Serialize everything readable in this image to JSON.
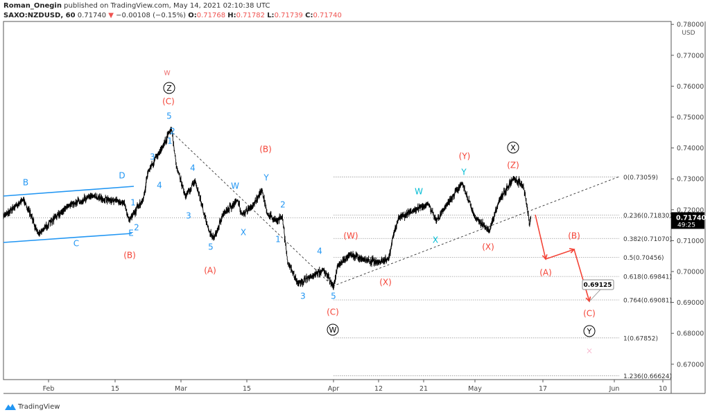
{
  "header": {
    "author": "Roman_Onegin",
    "published_text": "published on TradingView.com, May 14, 2021 02:10:38 UTC",
    "symbol": "SAXO:NZDUSD, 60",
    "last": "0.71740",
    "change": "−0.00108 (−0.15%)",
    "open_label": "O:",
    "open": "0.71768",
    "high_label": "H:",
    "high": "0.71782",
    "low_label": "L:",
    "low": "0.71739",
    "close_label": "C:",
    "close": "0.71740",
    "direction_icon": "triangle-down-icon"
  },
  "branding": {
    "logo_text": "TradingView",
    "logo_icon": "tradingview-logo-icon"
  },
  "colors": {
    "price": "#000000",
    "up_red": "#ef5350",
    "wave_blue": "#2196f3",
    "wave_cyan": "#00bcd4",
    "wave_red": "#f44336",
    "salmon": "#f08080",
    "pink": "#f8bbd0"
  },
  "chart_data": {
    "type": "line",
    "currency": "USD",
    "ylim": [
      0.665,
      0.782
    ],
    "y_ticks": [
      "0.78000",
      "0.77000",
      "0.76000",
      "0.75000",
      "0.74000",
      "0.73000",
      "0.72000",
      "0.71000",
      "0.70000",
      "0.69000",
      "0.68000",
      "0.67000"
    ],
    "x_ticks": [
      {
        "label": "Feb",
        "date": "2021-02-01"
      },
      {
        "label": "15",
        "date": "2021-02-15"
      },
      {
        "label": "Mar",
        "date": "2021-03-01"
      },
      {
        "label": "15",
        "date": "2021-03-15"
      },
      {
        "label": "Apr",
        "date": "2021-04-01"
      },
      {
        "label": "12",
        "date": "2021-04-12"
      },
      {
        "label": "21",
        "date": "2021-04-21"
      },
      {
        "label": "May",
        "date": "2021-05-03"
      },
      {
        "label": "17",
        "date": "2021-05-17"
      },
      {
        "label": "Jun",
        "date": "2021-06-01"
      },
      {
        "label": "10",
        "date": "2021-06-10"
      }
    ],
    "series": [
      {
        "points": [
          [
            "2021-01-23",
            0.718
          ],
          [
            "2021-01-27",
            0.7234
          ],
          [
            "2021-01-30",
            0.7122
          ],
          [
            "2021-02-05",
            0.7212
          ],
          [
            "2021-02-10",
            0.7245
          ],
          [
            "2021-02-17",
            0.7222
          ],
          [
            "2021-02-18",
            0.7166
          ],
          [
            "2021-02-21",
            0.7234
          ],
          [
            "2021-02-22",
            0.7323
          ],
          [
            "2021-02-25",
            0.7401
          ],
          [
            "2021-02-27",
            0.7464
          ],
          [
            "2021-02-28",
            0.7343
          ],
          [
            "2021-03-02",
            0.7242
          ],
          [
            "2021-03-04",
            0.7294
          ],
          [
            "2021-03-07",
            0.713
          ],
          [
            "2021-03-08",
            0.7108
          ],
          [
            "2021-03-10",
            0.7186
          ],
          [
            "2021-03-13",
            0.7231
          ],
          [
            "2021-03-14",
            0.7186
          ],
          [
            "2021-03-16",
            0.7208
          ],
          [
            "2021-03-18",
            0.7265
          ],
          [
            "2021-03-19",
            0.7186
          ],
          [
            "2021-03-21",
            0.7164
          ],
          [
            "2021-03-22",
            0.7175
          ],
          [
            "2021-03-23",
            0.703
          ],
          [
            "2021-03-25",
            0.6962
          ],
          [
            "2021-03-28",
            0.6985
          ],
          [
            "2021-03-30",
            0.7007
          ],
          [
            "2021-04-01",
            0.6951
          ],
          [
            "2021-04-02",
            0.7018
          ],
          [
            "2021-04-05",
            0.7056
          ],
          [
            "2021-04-08",
            0.7041
          ],
          [
            "2021-04-12",
            0.703
          ],
          [
            "2021-04-14",
            0.7041
          ],
          [
            "2021-04-15",
            0.7119
          ],
          [
            "2021-04-16",
            0.7175
          ],
          [
            "2021-04-19",
            0.7197
          ],
          [
            "2021-04-22",
            0.722
          ],
          [
            "2021-04-24",
            0.7164
          ],
          [
            "2021-04-26",
            0.7208
          ],
          [
            "2021-04-30",
            0.7287
          ],
          [
            "2021-05-03",
            0.7175
          ],
          [
            "2021-05-06",
            0.713
          ],
          [
            "2021-05-08",
            0.7231
          ],
          [
            "2021-05-11",
            0.7303
          ],
          [
            "2021-05-13",
            0.7276
          ],
          [
            "2021-05-13T18:00",
            0.7209
          ],
          [
            "2021-05-14T06:00",
            0.715
          ],
          [
            "2021-05-14T14:00",
            0.7174
          ]
        ]
      }
    ],
    "current_price": {
      "value": "0.71740",
      "countdown": "49:25"
    },
    "fib_levels": [
      {
        "ratio": "0",
        "price": 0.73059,
        "label": "0(0.73059)"
      },
      {
        "ratio": "0.236",
        "price": 0.7183,
        "label": "0.236(0.71830)"
      },
      {
        "ratio": "0.382",
        "price": 0.7107,
        "label": "0.382(0.71070)"
      },
      {
        "ratio": "0.5",
        "price": 0.70456,
        "label": "0.5(0.70456)"
      },
      {
        "ratio": "0.618",
        "price": 0.69841,
        "label": "0.618(0.69841)"
      },
      {
        "ratio": "0.764",
        "price": 0.69081,
        "label": "0.764(0.69081)"
      },
      {
        "ratio": "1",
        "price": 0.67852,
        "label": "1(0.67852)"
      },
      {
        "ratio": "1.236",
        "price": 0.66624,
        "label": "1.236(0.66624)"
      }
    ],
    "target_label": "0.69125",
    "wave_labels": [
      {
        "text": "B",
        "color": "#2196f3"
      },
      {
        "text": "C",
        "color": "#2196f3"
      },
      {
        "text": "D",
        "color": "#2196f3"
      },
      {
        "text": "E",
        "color": "#2196f3"
      },
      {
        "text": "1",
        "color": "#2196f3"
      },
      {
        "text": "2",
        "color": "#2196f3"
      },
      {
        "text": "3",
        "color": "#2196f3"
      },
      {
        "text": "4",
        "color": "#2196f3"
      },
      {
        "text": "5",
        "color": "#2196f3"
      },
      {
        "text": "1",
        "color": "#2196f3"
      },
      {
        "text": "2",
        "color": "#2196f3"
      },
      {
        "text": "3",
        "color": "#2196f3"
      },
      {
        "text": "4",
        "color": "#2196f3"
      },
      {
        "text": "5",
        "color": "#2196f3"
      },
      {
        "text": "W",
        "color": "#2196f3"
      },
      {
        "text": "X",
        "color": "#2196f3"
      },
      {
        "text": "Y",
        "color": "#2196f3"
      },
      {
        "text": "2",
        "color": "#2196f3"
      },
      {
        "text": "1",
        "color": "#2196f3"
      },
      {
        "text": "4",
        "color": "#2196f3"
      },
      {
        "text": "3",
        "color": "#2196f3"
      },
      {
        "text": "5",
        "color": "#2196f3"
      },
      {
        "text": "W",
        "color": "#00bcd4"
      },
      {
        "text": "X",
        "color": "#00bcd4"
      },
      {
        "text": "Y",
        "color": "#00bcd4"
      },
      {
        "text": "w",
        "color": "#f08080"
      },
      {
        "text": "(C)",
        "color": "#f44336"
      },
      {
        "text": "(B)",
        "color": "#f44336"
      },
      {
        "text": "(A)",
        "color": "#f44336"
      },
      {
        "text": "(B)",
        "color": "#f44336"
      },
      {
        "text": "(C)",
        "color": "#f44336"
      },
      {
        "text": "(W)",
        "color": "#f44336"
      },
      {
        "text": "(X)",
        "color": "#f44336"
      },
      {
        "text": "(Y)",
        "color": "#f44336"
      },
      {
        "text": "(X)",
        "color": "#f44336"
      },
      {
        "text": "(Z)",
        "color": "#f44336"
      },
      {
        "text": "(A)",
        "color": "#f44336"
      },
      {
        "text": "(B)",
        "color": "#f44336"
      },
      {
        "text": "(C)",
        "color": "#f44336"
      },
      {
        "text": "×",
        "color": "#f8bbd0"
      }
    ],
    "circled_labels": [
      "Z",
      "W",
      "X",
      "Y"
    ]
  }
}
